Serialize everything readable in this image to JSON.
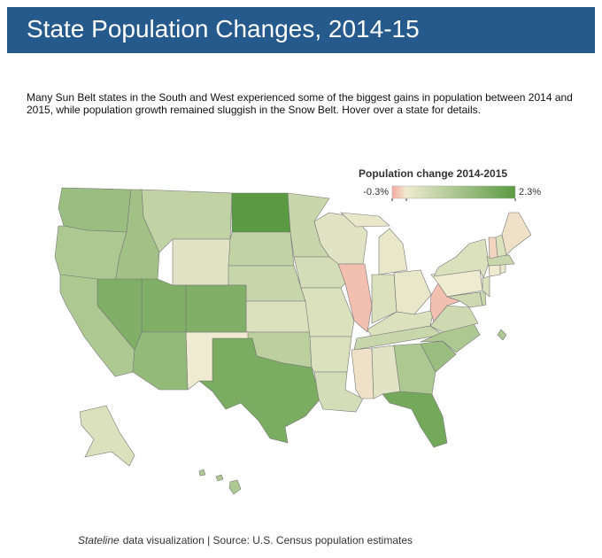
{
  "chart_data": {
    "type": "choropleth",
    "title": "State Population Changes, 2014-15",
    "description": "Many Sun Belt states in the South and West experienced some of the biggest gains in population between 2014 and 2015, while population growth remained sluggish in the Snow Belt. Hover over a state for details.",
    "legend_title": "Population change 2014-2015",
    "scale": {
      "domain": [
        {
          "value": -0.3,
          "label": "-0.3%"
        },
        0,
        {
          "value": 2.3,
          "label": "2.3%"
        }
      ],
      "colors": [
        "#f6a9a2",
        "#eeebd0",
        "#5a9a42"
      ]
    },
    "values": [
      1.3,
      1.0,
      1.2,
      0.7,
      0.2,
      2.3,
      0.7,
      0.6,
      0.3,
      0.8,
      1.8,
      0.0,
      1.7,
      1.7,
      1.7,
      1.0,
      1.4,
      0.6,
      0.4,
      0.3,
      0.3,
      0.4,
      0.2,
      -0.2,
      0.1,
      0.3,
      0.1,
      0.3,
      0.6,
      -0.05,
      0.2,
      1.0,
      1.9,
      1.3,
      1.0,
      0.5,
      -0.2,
      0.0,
      0.3,
      0.5,
      0.6,
      0.3,
      0.0,
      0.1,
      0.6,
      -0.1,
      0.3,
      -0.05,
      0.3,
      1.0
    ],
    "source_italic": "Stateline",
    "source": "data visualization | Source: U.S. Census population estimates"
  }
}
